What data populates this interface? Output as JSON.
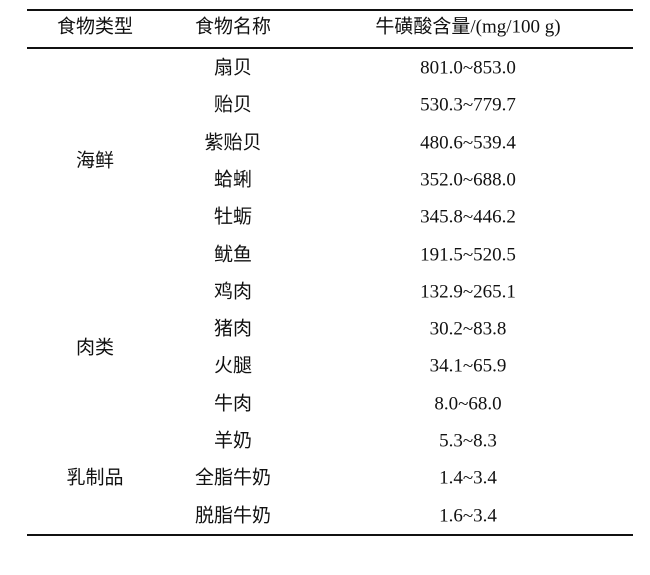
{
  "table": {
    "headers": [
      "食物类型",
      "食物名称",
      "牛磺酸含量/(mg/100 g)"
    ],
    "groups": [
      {
        "type": "海鲜",
        "rows": [
          {
            "name": "扇贝",
            "value": "801.0~853.0"
          },
          {
            "name": "贻贝",
            "value": "530.3~779.7"
          },
          {
            "name": "紫贻贝",
            "value": "480.6~539.4"
          },
          {
            "name": "蛤蜊",
            "value": "352.0~688.0"
          },
          {
            "name": "牡蛎",
            "value": "345.8~446.2"
          },
          {
            "name": "鱿鱼",
            "value": "191.5~520.5"
          }
        ]
      },
      {
        "type": "肉类",
        "rows": [
          {
            "name": "鸡肉",
            "value": "132.9~265.1"
          },
          {
            "name": "猪肉",
            "value": "30.2~83.8"
          },
          {
            "name": "火腿",
            "value": "34.1~65.9"
          },
          {
            "name": "牛肉",
            "value": "8.0~68.0"
          }
        ]
      },
      {
        "type": "乳制品",
        "rows": [
          {
            "name": "羊奶",
            "value": "5.3~8.3"
          },
          {
            "name": "全脂牛奶",
            "value": "1.4~3.4"
          },
          {
            "name": "脱脂牛奶",
            "value": "1.6~3.4"
          }
        ]
      }
    ]
  }
}
